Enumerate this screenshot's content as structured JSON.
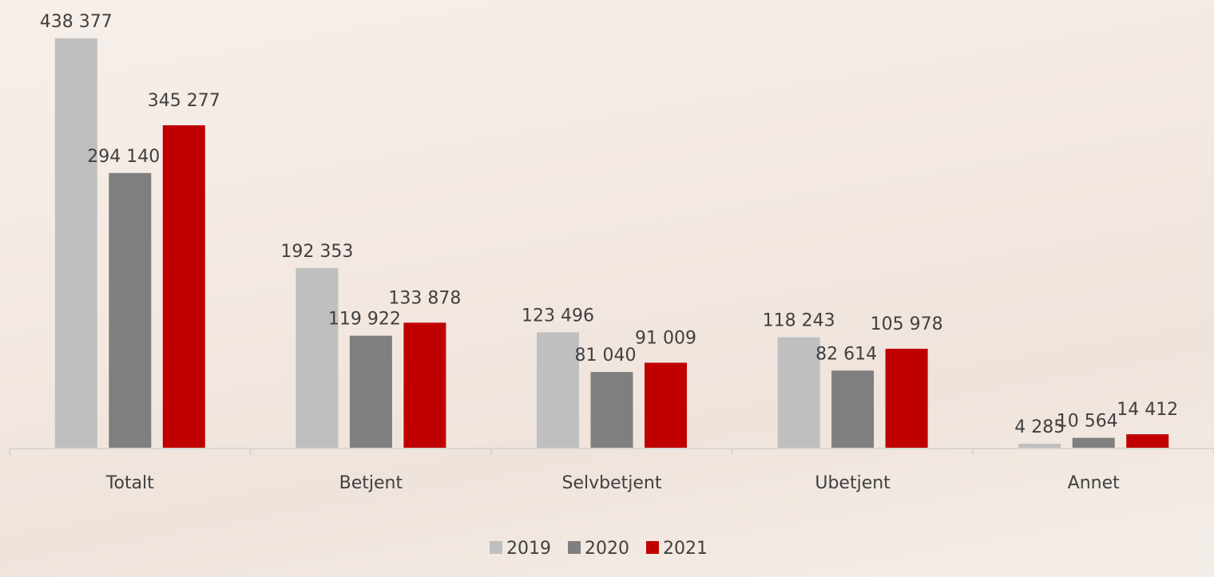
{
  "chart_data": {
    "type": "bar",
    "categories": [
      "Totalt",
      "Betjent",
      "Selvbetjent",
      "Ubetjent",
      "Annet"
    ],
    "series": [
      {
        "name": "2019",
        "color": "#bfbfbf",
        "values": [
          438377,
          192353,
          123496,
          118243,
          4285
        ],
        "value_labels": [
          "438 377",
          "192 353",
          "123 496",
          "118 243",
          "4 285"
        ]
      },
      {
        "name": "2020",
        "color": "#7f7f7f",
        "values": [
          294140,
          119922,
          81040,
          82614,
          10564
        ],
        "value_labels": [
          "294 140",
          "119 922",
          "81 040",
          "82 614",
          "10 564"
        ]
      },
      {
        "name": "2021",
        "color": "#c00000",
        "values": [
          345277,
          133878,
          91009,
          105978,
          14412
        ],
        "value_labels": [
          "345 277",
          "133 878",
          "91 009",
          "105 978",
          "14 412"
        ]
      }
    ],
    "ylim": [
      0,
      450000
    ]
  }
}
